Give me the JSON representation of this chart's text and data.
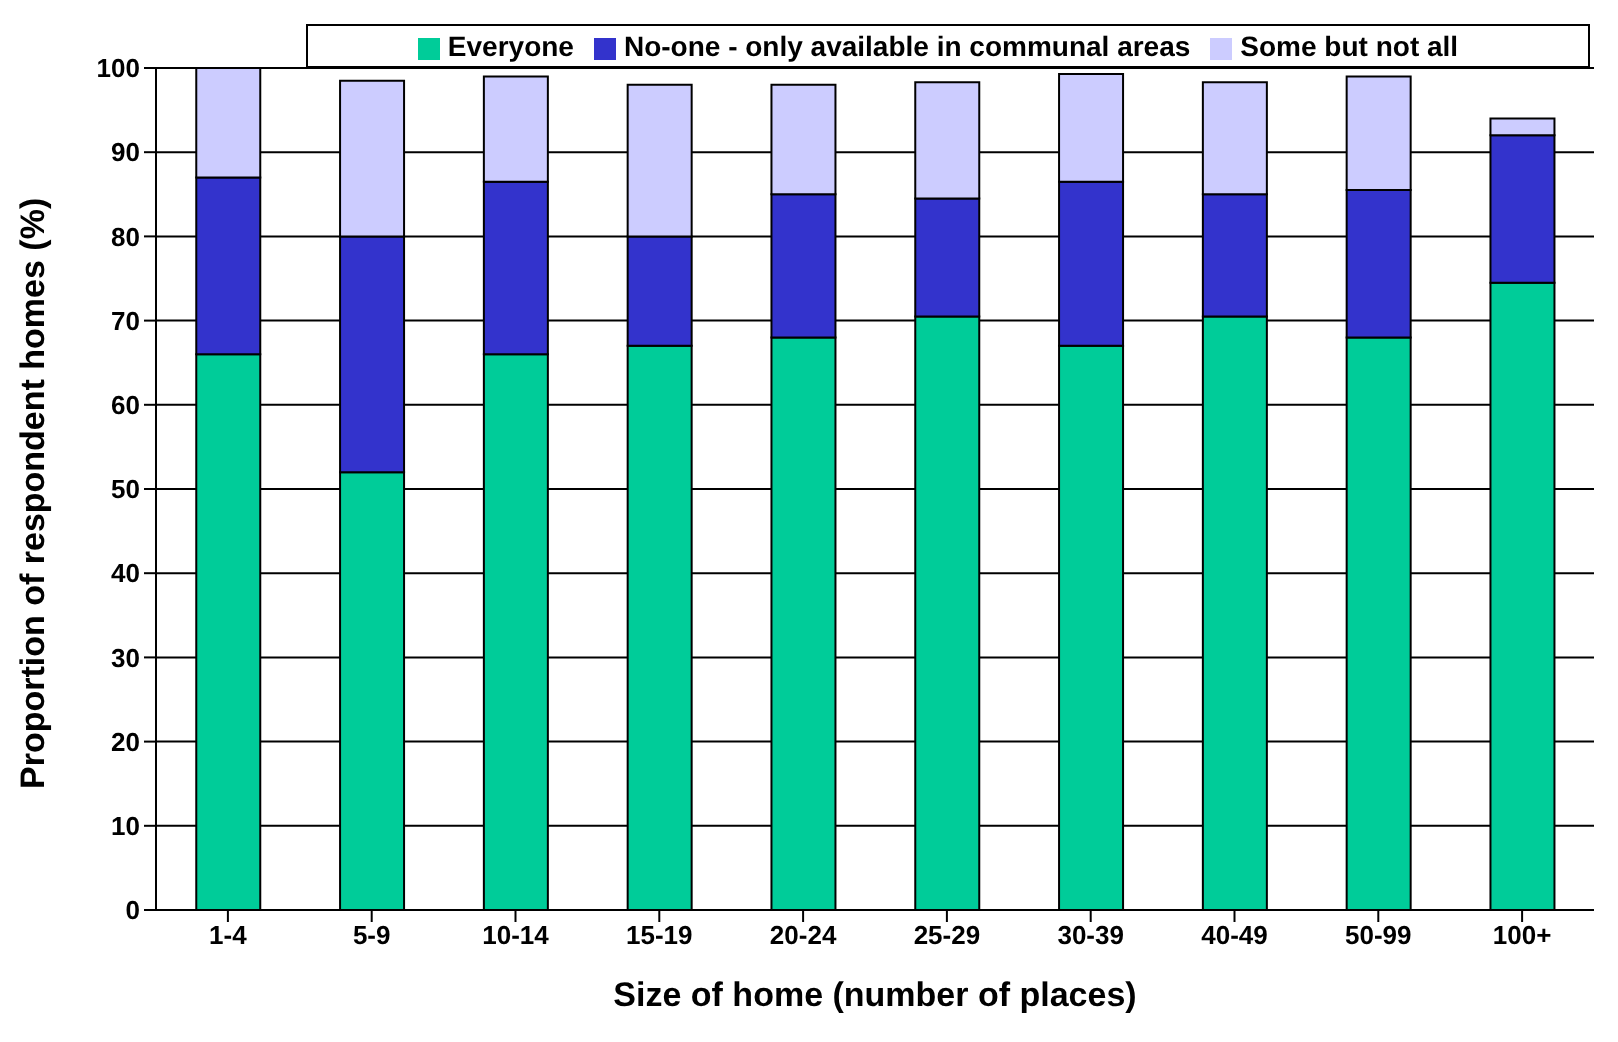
{
  "chart_data": {
    "type": "bar",
    "stacked": true,
    "xlabel": "Size of home (number of places)",
    "ylabel": "Proportion of respondent homes (%)",
    "categories": [
      "1-4",
      "5-9",
      "10-14",
      "15-19",
      "20-24",
      "25-29",
      "30-39",
      "40-49",
      "50-99",
      "100+"
    ],
    "series": [
      {
        "name": "Everyone",
        "color": "#00cc99",
        "values": [
          66,
          52,
          66,
          67,
          68,
          70.5,
          67,
          70.5,
          68,
          74.5
        ]
      },
      {
        "name": "No-one - only available in communal areas",
        "color": "#3333cc",
        "values": [
          21,
          28,
          20.5,
          13,
          17,
          14,
          19.5,
          14.5,
          17.5,
          17.5
        ]
      },
      {
        "name": "Some but not all",
        "color": "#ccccff",
        "values": [
          13,
          18.5,
          12.5,
          18,
          13,
          13.8,
          12.8,
          13.3,
          13.5,
          2
        ]
      }
    ],
    "ylim": [
      0,
      100
    ],
    "yticks": [
      0,
      10,
      20,
      30,
      40,
      50,
      60,
      70,
      80,
      90,
      100
    ],
    "grid": "y",
    "legend": "top"
  }
}
